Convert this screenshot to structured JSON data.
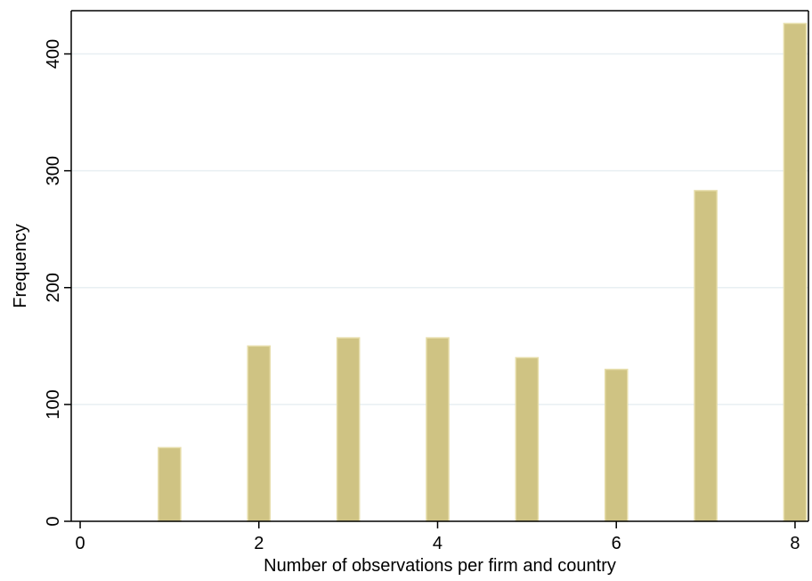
{
  "chart_data": {
    "type": "bar",
    "title": "",
    "xlabel": "Number of observations per firm and country",
    "ylabel": "Frequency",
    "x": [
      1,
      2,
      3,
      4,
      5,
      6,
      7,
      8
    ],
    "values": [
      63,
      150,
      157,
      157,
      140,
      130,
      283,
      426
    ],
    "xlim": [
      -0.1,
      8.15
    ],
    "ylim": [
      0,
      437
    ],
    "xticks": [
      0,
      2,
      4,
      6,
      8
    ],
    "yticks": [
      0,
      100,
      200,
      300,
      400
    ],
    "grid": true,
    "legend": "none",
    "colors": {
      "bar_fill": "#CFC383",
      "bar_edge": "#E6DDA9",
      "grid": "#E8EFF2",
      "axis": "#000000"
    }
  }
}
